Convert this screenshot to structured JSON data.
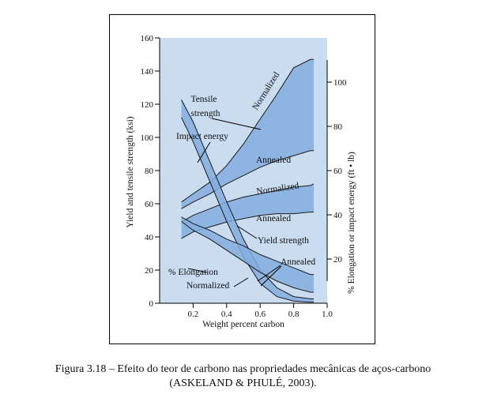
{
  "caption": {
    "line1": "Figura 3.18 – Efeito do teor de carbono nas propriedades mecânicas de aços-carbono",
    "line2": "(ASKELAND & PHULÉ, 2003)."
  },
  "colors": {
    "band_fill": "#84aedf",
    "plot_bg": "#c9dcf0",
    "line": "#1a1a1a"
  },
  "chart_data": {
    "type": "area",
    "xlabel": "Weight percent carbon",
    "ylabel_left": "Yield and tensile strength (ksi)",
    "ylabel_right": "% Elongation or impact energy (ft • lb)",
    "xlim": [
      0,
      1.0
    ],
    "ylim_left": [
      0,
      160
    ],
    "ylim_right": [
      0,
      120
    ],
    "x_ticks": [
      "0.2",
      "0.4",
      "0.6",
      "0.8",
      "1.0"
    ],
    "y_ticks_left": [
      "0",
      "20",
      "40",
      "60",
      "80",
      "100",
      "120",
      "140",
      "160"
    ],
    "y_ticks_right": [
      "20",
      "40",
      "60",
      "80",
      "100"
    ],
    "grid": false,
    "series": [
      {
        "name": "Tensile strength",
        "axis": "left",
        "x": [
          0.13,
          0.2,
          0.3,
          0.4,
          0.5,
          0.6,
          0.7,
          0.8,
          0.9,
          0.92
        ],
        "upper": [
          61,
          66,
          73,
          83,
          96,
          111,
          126,
          142,
          147,
          147
        ],
        "lower": [
          57,
          61,
          66,
          72,
          77,
          82,
          86,
          89,
          92,
          92
        ],
        "upper_label": "Normalized",
        "lower_label": "Annealed"
      },
      {
        "name": "Yield strength",
        "axis": "left",
        "x": [
          0.13,
          0.2,
          0.3,
          0.4,
          0.5,
          0.6,
          0.7,
          0.8,
          0.9,
          0.92
        ],
        "upper": [
          49,
          53,
          57,
          61,
          64,
          66,
          68,
          70,
          71,
          72
        ],
        "lower": [
          39,
          43,
          46,
          49,
          51,
          53,
          54,
          54,
          55,
          55
        ],
        "upper_label": "Normalized",
        "lower_label": "Annealed"
      },
      {
        "name": "Impact energy",
        "axis": "right",
        "x": [
          0.13,
          0.2,
          0.3,
          0.4,
          0.5,
          0.6,
          0.7,
          0.8,
          0.9,
          0.92
        ],
        "upper": [
          92,
          82,
          64,
          46,
          29,
          15,
          7,
          3,
          2,
          2
        ],
        "lower": [
          84,
          73,
          55,
          37,
          21,
          9,
          3,
          1,
          0.5,
          0.5
        ]
      },
      {
        "name": "% Elongation",
        "axis": "right",
        "x": [
          0.13,
          0.2,
          0.3,
          0.4,
          0.5,
          0.6,
          0.7,
          0.8,
          0.9,
          0.92
        ],
        "upper": [
          39,
          36,
          33,
          29,
          26,
          22,
          19,
          16,
          13,
          13
        ],
        "lower": [
          37,
          33,
          29,
          24,
          19,
          14,
          10,
          7,
          5,
          5
        ],
        "upper_label": "Annealed",
        "lower_label": "Normalized"
      }
    ],
    "annotations": {
      "tensile_1": "Tensile",
      "tensile_2": "strength",
      "impact": "Impact energy",
      "yield": "Yield strength",
      "elongation": "% Elongation",
      "normalized_tensile": "Normalized",
      "annealed_tensile": "Annealed",
      "normalized_yield": "Normalized",
      "annealed_yield": "Annealed",
      "annealed_elong": "Annealed",
      "normalized_elong": "Normalized"
    }
  }
}
